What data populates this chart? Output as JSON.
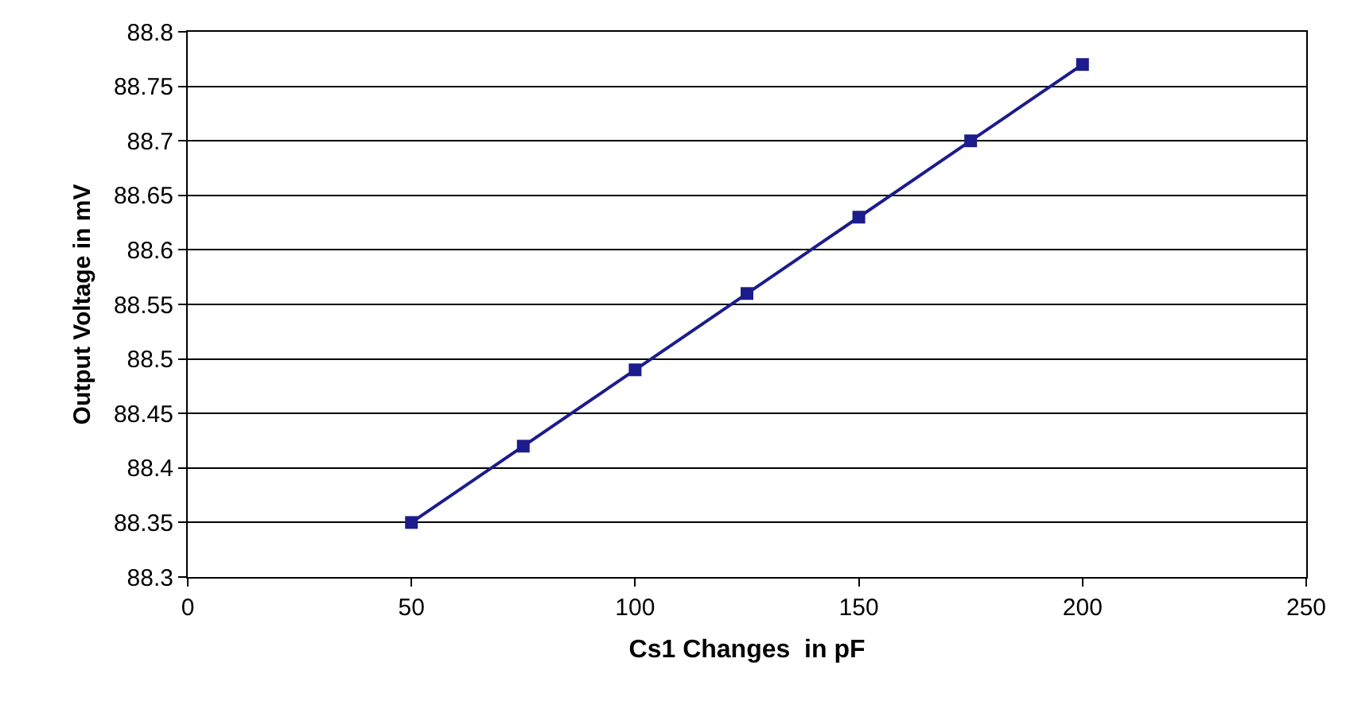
{
  "chart_data": {
    "type": "line",
    "xlabel": "Cs1 Changes  in pF",
    "ylabel": "Output Voltage in mV",
    "x": [
      50,
      75,
      100,
      125,
      150,
      175,
      200
    ],
    "series": [
      {
        "color": "#1c1c8c",
        "values": [
          88.35,
          88.42,
          88.49,
          88.56,
          88.63,
          88.7,
          88.77
        ]
      }
    ],
    "xlim": [
      0,
      250
    ],
    "xticks": [
      0,
      50,
      100,
      150,
      200,
      250
    ],
    "ylim": [
      88.3,
      88.8
    ],
    "yticks": [
      88.3,
      88.35,
      88.4,
      88.45,
      88.5,
      88.55,
      88.6,
      88.65,
      88.7,
      88.75,
      88.8
    ],
    "grid": "y",
    "marker": "square",
    "line_style": "solid"
  }
}
